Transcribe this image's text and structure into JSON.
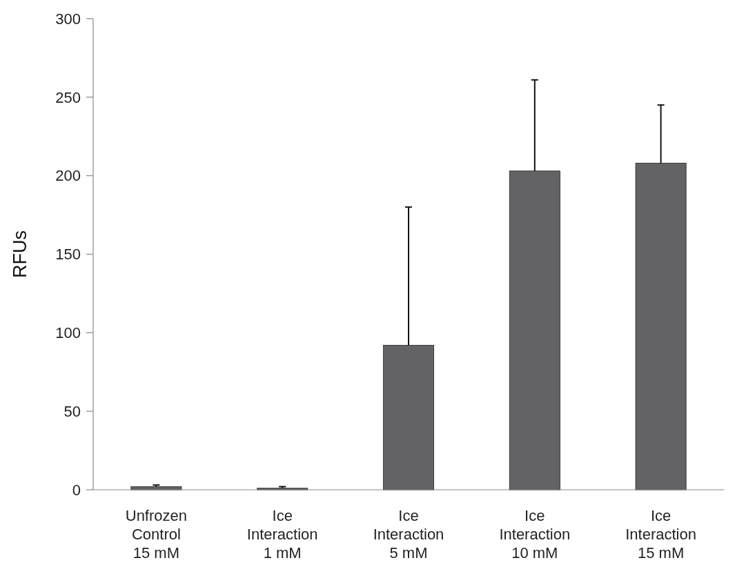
{
  "chart_data": {
    "type": "bar",
    "ylabel": "RFUs",
    "categories": [
      "Unfrozen\nControl\n15 mM",
      "Ice\nInteraction\n1 mM",
      "Ice\nInteraction\n5 mM",
      "Ice\nInteraction\n10 mM",
      "Ice\nInteraction\n15 mM"
    ],
    "values": [
      2,
      1,
      92,
      203,
      208
    ],
    "errors": [
      1,
      1,
      88,
      58,
      37
    ],
    "color": "#636365",
    "ylim": [
      0,
      300
    ],
    "yticks": [
      0,
      50,
      100,
      150,
      200,
      250,
      300
    ],
    "grid": false
  }
}
